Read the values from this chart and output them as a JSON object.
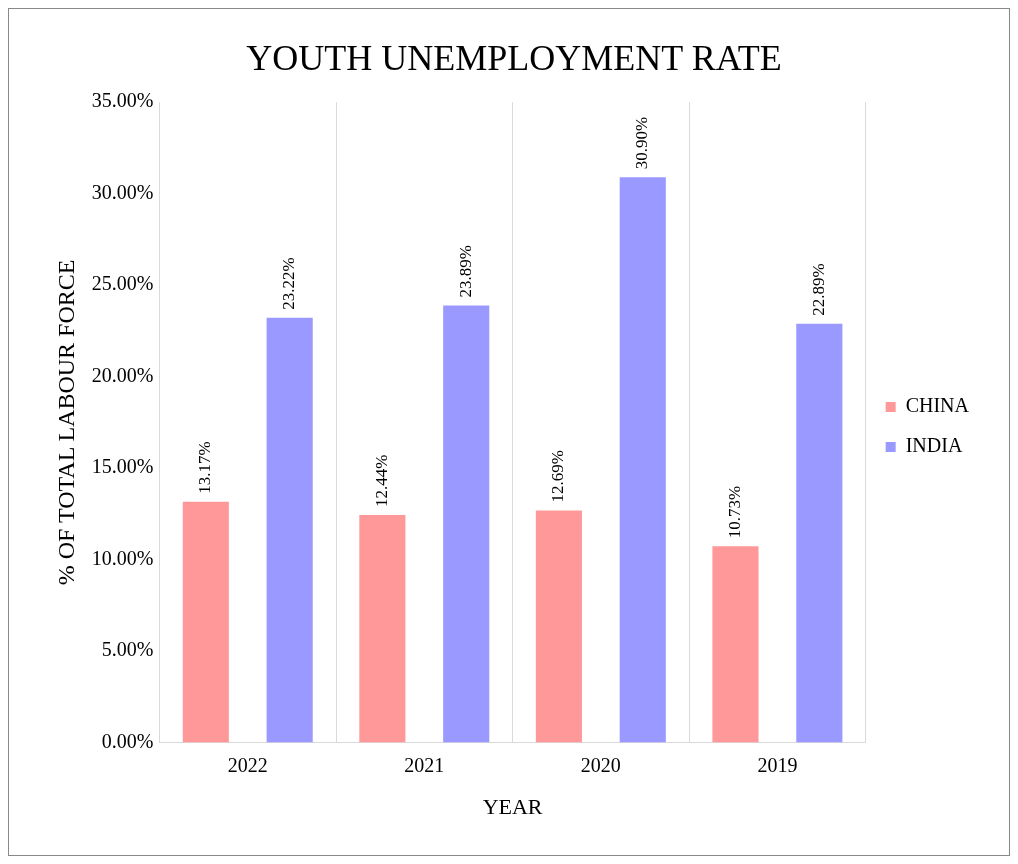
{
  "chart_data": {
    "type": "bar",
    "title": "YOUTH UNEMPLOYMENT RATE",
    "xlabel": "YEAR",
    "ylabel": "% OF TOTAL LABOUR FORCE",
    "categories": [
      "2022",
      "2021",
      "2020",
      "2019"
    ],
    "series": [
      {
        "name": "CHINA",
        "color": "#ff9999",
        "values": [
          13.17,
          12.44,
          12.69,
          10.73
        ],
        "value_labels": [
          "13.17%",
          "12.44%",
          "12.69%",
          "10.73%"
        ]
      },
      {
        "name": "INDIA",
        "color": "#9999ff",
        "values": [
          23.22,
          23.89,
          30.9,
          22.89
        ],
        "value_labels": [
          "23.22%",
          "23.89%",
          "30.90%",
          "22.89%"
        ]
      }
    ],
    "ylim": [
      0,
      35
    ],
    "yticks": [
      {
        "value": 0,
        "label": "0.00%"
      },
      {
        "value": 5,
        "label": "5.00%"
      },
      {
        "value": 10,
        "label": "10.00%"
      },
      {
        "value": 15,
        "label": "15.00%"
      },
      {
        "value": 20,
        "label": "20.00%"
      },
      {
        "value": 25,
        "label": "25.00%"
      },
      {
        "value": 30,
        "label": "30.00%"
      },
      {
        "value": 35,
        "label": "35.00%"
      }
    ],
    "grid": "x",
    "legend": "right"
  }
}
